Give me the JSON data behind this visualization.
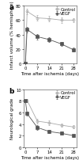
{
  "panel_a": {
    "title": "a",
    "ylabel": "Infarct volume (% hemisphere)",
    "xlabel": "Time after ischemia (days)",
    "ylim": [
      0,
      80
    ],
    "yticks": [
      0,
      20,
      40,
      60,
      80
    ],
    "xticks": [
      0,
      7,
      14,
      21,
      28
    ],
    "xlim": [
      -1,
      30
    ],
    "control": {
      "x": [
        0,
        1,
        7,
        14,
        21,
        28
      ],
      "y": [
        0,
        72,
        63,
        62,
        60,
        60
      ],
      "yerr": [
        0,
        4,
        4,
        4,
        4,
        3
      ],
      "label": "Control",
      "marker": "o",
      "color": "#aaaaaa",
      "mfc": "none"
    },
    "vegf": {
      "x": [
        0,
        1,
        7,
        14,
        21,
        28
      ],
      "y": [
        0,
        47,
        37,
        33,
        27,
        19
      ],
      "yerr": [
        0,
        4,
        4,
        3,
        3,
        3
      ],
      "label": "VEGF",
      "marker": "s",
      "color": "#555555",
      "mfc": "#555555"
    }
  },
  "panel_b": {
    "title": "b",
    "ylabel": "Neurological grade",
    "xlabel": "Time after ischemia (days)",
    "ylim": [
      0,
      10
    ],
    "yticks": [
      0,
      2,
      4,
      6,
      8,
      10
    ],
    "xticks": [
      0,
      7,
      14,
      21,
      28
    ],
    "xlim": [
      -1,
      30
    ],
    "control": {
      "x": [
        0,
        1,
        7,
        14,
        21,
        28
      ],
      "y": [
        8.0,
        8.1,
        4.5,
        4.2,
        3.8,
        3.5
      ],
      "yerr": [
        0.2,
        0.3,
        0.4,
        0.4,
        0.3,
        0.3
      ],
      "label": "Control",
      "marker": "o",
      "color": "#aaaaaa",
      "mfc": "none"
    },
    "vegf": {
      "x": [
        0,
        1,
        7,
        14,
        21,
        28
      ],
      "y": [
        8.0,
        5.8,
        3.4,
        2.7,
        2.4,
        2.0
      ],
      "yerr": [
        0.2,
        0.4,
        0.4,
        0.3,
        0.3,
        0.2
      ],
      "label": "VEGF",
      "marker": "s",
      "color": "#555555",
      "mfc": "#555555"
    }
  },
  "figure_bg": "#ffffff",
  "font_size": 5.5,
  "label_fontsize": 4.0,
  "tick_fontsize": 3.8,
  "legend_fontsize": 3.8,
  "linewidth": 0.6,
  "markersize": 2.2,
  "capsize": 0.8,
  "elinewidth": 0.4,
  "markeredgewidth": 0.5
}
